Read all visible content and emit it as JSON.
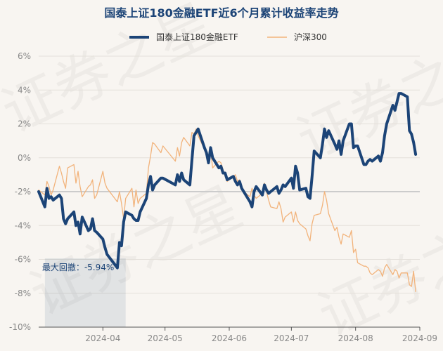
{
  "chart_data": {
    "type": "line",
    "title": "国泰上证180金融ETF近6个月累计收益率走势",
    "watermark": "证券之星",
    "ylim": [
      -10,
      6
    ],
    "y_ticks": [
      {
        "value": 6,
        "label": "6%"
      },
      {
        "value": 4,
        "label": "4%"
      },
      {
        "value": 2,
        "label": "2%"
      },
      {
        "value": 0,
        "label": "0%"
      },
      {
        "value": -2,
        "label": "-2%"
      },
      {
        "value": -4,
        "label": "-4%"
      },
      {
        "value": -6,
        "label": "-6%"
      },
      {
        "value": -8,
        "label": "-8%"
      },
      {
        "value": -10,
        "label": "-10%"
      }
    ],
    "x_ticks": [
      {
        "date": "2024-04-01",
        "label": "2024-04"
      },
      {
        "date": "2024-05-01",
        "label": "2024-05"
      },
      {
        "date": "2024-06-01",
        "label": "2024-06"
      },
      {
        "date": "2024-07-01",
        "label": "2024-07"
      },
      {
        "date": "2024-08-01",
        "label": "2024-08"
      },
      {
        "date": "2024-09-01",
        "label": "2024-09"
      }
    ],
    "x_range": [
      "2024-03-01",
      "2024-09-01"
    ],
    "reference_line": -2,
    "max_drawdown": {
      "label": "最大回撤：-5.94%",
      "value": -5.94,
      "start": "2024-03-04",
      "end": "2024-04-12"
    },
    "series": [
      {
        "name": "国泰上证180金融ETF",
        "color": "#1c4477",
        "x": [
          "2024-03-01",
          "2024-03-04",
          "2024-03-05",
          "2024-03-06",
          "2024-03-07",
          "2024-03-08",
          "2024-03-11",
          "2024-03-12",
          "2024-03-13",
          "2024-03-14",
          "2024-03-15",
          "2024-03-18",
          "2024-03-19",
          "2024-03-20",
          "2024-03-21",
          "2024-03-22",
          "2024-03-25",
          "2024-03-26",
          "2024-03-27",
          "2024-03-28",
          "2024-03-29",
          "2024-04-01",
          "2024-04-02",
          "2024-04-03",
          "2024-04-08",
          "2024-04-09",
          "2024-04-10",
          "2024-04-11",
          "2024-04-12",
          "2024-04-15",
          "2024-04-16",
          "2024-04-17",
          "2024-04-18",
          "2024-04-19",
          "2024-04-22",
          "2024-04-23",
          "2024-04-24",
          "2024-04-25",
          "2024-04-26",
          "2024-04-29",
          "2024-04-30",
          "2024-05-06",
          "2024-05-07",
          "2024-05-08",
          "2024-05-09",
          "2024-05-10",
          "2024-05-13",
          "2024-05-14",
          "2024-05-15",
          "2024-05-16",
          "2024-05-17",
          "2024-05-20",
          "2024-05-21",
          "2024-05-22",
          "2024-05-23",
          "2024-05-24",
          "2024-05-27",
          "2024-05-28",
          "2024-05-29",
          "2024-05-30",
          "2024-05-31",
          "2024-06-03",
          "2024-06-04",
          "2024-06-05",
          "2024-06-06",
          "2024-06-07",
          "2024-06-11",
          "2024-06-12",
          "2024-06-13",
          "2024-06-14",
          "2024-06-17",
          "2024-06-18",
          "2024-06-19",
          "2024-06-20",
          "2024-06-21",
          "2024-06-24",
          "2024-06-25",
          "2024-06-26",
          "2024-06-27",
          "2024-06-28",
          "2024-07-01",
          "2024-07-02",
          "2024-07-03",
          "2024-07-04",
          "2024-07-05",
          "2024-07-08",
          "2024-07-09",
          "2024-07-10",
          "2024-07-11",
          "2024-07-12",
          "2024-07-15",
          "2024-07-16",
          "2024-07-17",
          "2024-07-18",
          "2024-07-19",
          "2024-07-22",
          "2024-07-23",
          "2024-07-24",
          "2024-07-25",
          "2024-07-26",
          "2024-07-29",
          "2024-07-30",
          "2024-07-31",
          "2024-08-01",
          "2024-08-02",
          "2024-08-05",
          "2024-08-06",
          "2024-08-07",
          "2024-08-08",
          "2024-08-09",
          "2024-08-12",
          "2024-08-13",
          "2024-08-14",
          "2024-08-15",
          "2024-08-16",
          "2024-08-19",
          "2024-08-20",
          "2024-08-21",
          "2024-08-22",
          "2024-08-23",
          "2024-08-26",
          "2024-08-27",
          "2024-08-28",
          "2024-08-29",
          "2024-08-30"
        ],
        "values": [
          -2.0,
          -2.9,
          -1.8,
          -2.4,
          -2.3,
          -2.5,
          -2.2,
          -2.4,
          -3.6,
          -3.9,
          -3.6,
          -3.2,
          -4.0,
          -3.8,
          -4.5,
          -3.5,
          -4.3,
          -4.2,
          -3.6,
          -4.3,
          -4.4,
          -4.8,
          -5.3,
          -5.7,
          -6.5,
          -5.0,
          -5.2,
          -3.8,
          -3.2,
          -3.4,
          -3.6,
          -3.7,
          -3.7,
          -3.2,
          -2.4,
          -1.6,
          -1.1,
          -1.9,
          -1.6,
          -1.2,
          -1.2,
          -1.6,
          -1.0,
          -1.4,
          -0.9,
          -1.3,
          -1.6,
          -0.1,
          1.3,
          1.5,
          1.7,
          0.6,
          0.3,
          -0.3,
          0.6,
          0.0,
          -0.6,
          -0.5,
          -0.9,
          -0.9,
          -1.3,
          -1.1,
          -1.4,
          -1.6,
          -1.4,
          -1.8,
          -2.6,
          -2.9,
          -2.0,
          -1.7,
          -2.2,
          -1.6,
          -1.9,
          -2.1,
          -2.0,
          -1.7,
          -2.1,
          -1.9,
          -1.6,
          -1.7,
          -1.2,
          -1.8,
          -0.5,
          -0.9,
          -1.9,
          -1.8,
          -2.3,
          -2.4,
          -1.1,
          0.4,
          0.0,
          0.8,
          1.7,
          1.2,
          1.6,
          0.8,
          0.5,
          1.0,
          0.2,
          1.0,
          2.0,
          2.0,
          0.6,
          0.7,
          0.7,
          -0.4,
          -0.4,
          -0.2,
          -0.1,
          -0.2,
          0.1,
          -0.2,
          0.3,
          1.3,
          2.0,
          3.1,
          2.8,
          3.3,
          3.8,
          3.8,
          3.6,
          1.6,
          1.4,
          0.9,
          0.2
        ]
      },
      {
        "name": "沪深300",
        "color": "#f2b37b",
        "x": [
          "2024-03-01",
          "2024-03-04",
          "2024-03-05",
          "2024-03-06",
          "2024-03-07",
          "2024-03-08",
          "2024-03-11",
          "2024-03-12",
          "2024-03-13",
          "2024-03-14",
          "2024-03-15",
          "2024-03-18",
          "2024-03-19",
          "2024-03-20",
          "2024-03-21",
          "2024-03-22",
          "2024-03-25",
          "2024-03-26",
          "2024-03-27",
          "2024-03-28",
          "2024-03-29",
          "2024-04-01",
          "2024-04-02",
          "2024-04-03",
          "2024-04-08",
          "2024-04-09",
          "2024-04-10",
          "2024-04-11",
          "2024-04-12",
          "2024-04-15",
          "2024-04-16",
          "2024-04-17",
          "2024-04-18",
          "2024-04-19",
          "2024-04-22",
          "2024-04-23",
          "2024-04-24",
          "2024-04-25",
          "2024-04-26",
          "2024-04-29",
          "2024-04-30",
          "2024-05-06",
          "2024-05-07",
          "2024-05-08",
          "2024-05-09",
          "2024-05-10",
          "2024-05-13",
          "2024-05-14",
          "2024-05-15",
          "2024-05-16",
          "2024-05-17",
          "2024-05-20",
          "2024-05-21",
          "2024-05-22",
          "2024-05-23",
          "2024-05-24",
          "2024-05-27",
          "2024-05-28",
          "2024-05-29",
          "2024-05-30",
          "2024-05-31",
          "2024-06-03",
          "2024-06-04",
          "2024-06-05",
          "2024-06-06",
          "2024-06-07",
          "2024-06-11",
          "2024-06-12",
          "2024-06-13",
          "2024-06-14",
          "2024-06-17",
          "2024-06-18",
          "2024-06-19",
          "2024-06-20",
          "2024-06-21",
          "2024-06-24",
          "2024-06-25",
          "2024-06-26",
          "2024-06-27",
          "2024-06-28",
          "2024-07-01",
          "2024-07-02",
          "2024-07-03",
          "2024-07-04",
          "2024-07-05",
          "2024-07-08",
          "2024-07-09",
          "2024-07-10",
          "2024-07-11",
          "2024-07-12",
          "2024-07-15",
          "2024-07-16",
          "2024-07-17",
          "2024-07-18",
          "2024-07-19",
          "2024-07-22",
          "2024-07-23",
          "2024-07-24",
          "2024-07-25",
          "2024-07-26",
          "2024-07-29",
          "2024-07-30",
          "2024-07-31",
          "2024-08-01",
          "2024-08-02",
          "2024-08-05",
          "2024-08-06",
          "2024-08-07",
          "2024-08-08",
          "2024-08-09",
          "2024-08-12",
          "2024-08-13",
          "2024-08-14",
          "2024-08-15",
          "2024-08-16",
          "2024-08-19",
          "2024-08-20",
          "2024-08-21",
          "2024-08-22",
          "2024-08-23",
          "2024-08-26",
          "2024-08-27",
          "2024-08-28",
          "2024-08-29",
          "2024-08-30"
        ],
        "values": [
          -1.9,
          -2.2,
          -1.4,
          -1.7,
          -2.2,
          -1.9,
          -0.5,
          -0.9,
          -1.4,
          -1.8,
          -0.6,
          -0.4,
          -1.5,
          -0.8,
          -1.7,
          -2.3,
          -1.7,
          -1.6,
          -1.3,
          -2.4,
          -2.2,
          -0.8,
          -1.5,
          -1.8,
          -2.6,
          -2.0,
          -2.7,
          -3.6,
          -2.4,
          -1.8,
          -2.9,
          -1.9,
          -2.7,
          -2.4,
          -2.1,
          -0.6,
          0.1,
          0.9,
          0.8,
          0.3,
          0.7,
          -0.2,
          0.6,
          0.1,
          0.9,
          1.2,
          0.7,
          1.5,
          1.4,
          1.7,
          1.3,
          0.5,
          0.1,
          -0.3,
          0.4,
          -0.6,
          -0.2,
          -0.3,
          -0.7,
          -1.1,
          -1.4,
          -1.1,
          -1.0,
          -1.4,
          -1.3,
          -1.9,
          -2.3,
          -1.8,
          -2.2,
          -2.4,
          -2.1,
          -1.5,
          -2.0,
          -2.5,
          -2.9,
          -3.0,
          -2.6,
          -3.0,
          -3.8,
          -3.5,
          -3.2,
          -3.8,
          -3.2,
          -3.7,
          -3.9,
          -4.2,
          -4.6,
          -4.9,
          -3.9,
          -3.4,
          -3.3,
          -2.8,
          -2.0,
          -2.5,
          -3.3,
          -4.3,
          -4.1,
          -4.7,
          -5.1,
          -4.5,
          -4.7,
          -4.3,
          -5.6,
          -5.4,
          -6.2,
          -6.4,
          -6.4,
          -6.5,
          -6.8,
          -6.9,
          -6.6,
          -6.7,
          -7.0,
          -6.5,
          -6.3,
          -6.9,
          -6.6,
          -6.7,
          -7.1,
          -6.8,
          -6.8,
          -7.5,
          -7.6,
          -6.7,
          -7.9
        ]
      }
    ]
  }
}
